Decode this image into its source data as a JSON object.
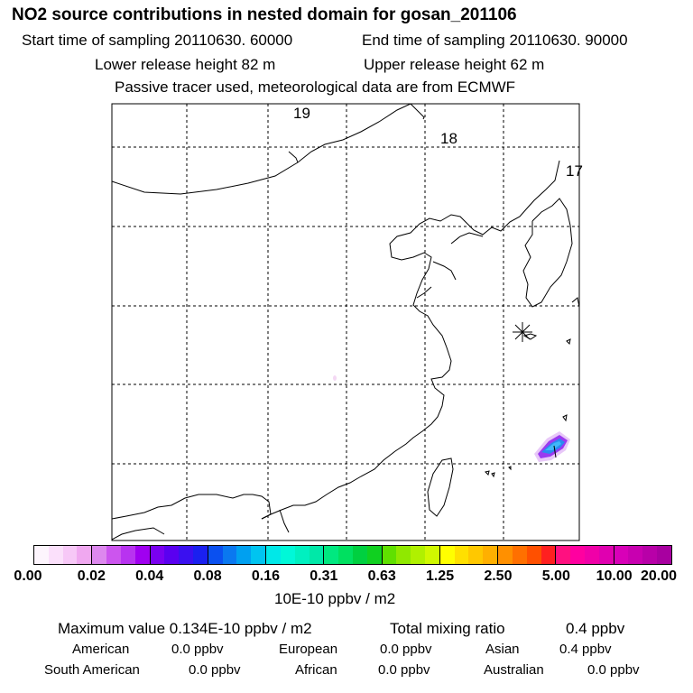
{
  "header": {
    "title": "NO2 source contributions in nested domain for gosan_201106",
    "start_label": "Start time of sampling 20110630. 60000",
    "end_label": "End time of sampling 20110630. 90000",
    "lower_label": "Lower release height   82 m",
    "upper_label": "Upper release height   62 m",
    "info": "Passive tracer used, meteorological data are from ECMWF"
  },
  "map": {
    "trajectory_labels": [
      "19",
      "18",
      "17"
    ],
    "coastline_color": "#000000",
    "grid_color": "#000000"
  },
  "colorbar": {
    "colors": [
      "#fdf5fd",
      "#fbe0fb",
      "#f7c8f7",
      "#f0a8f0",
      "#dd88ee",
      "#cc55ee",
      "#b833f0",
      "#a000f0",
      "#7a00f0",
      "#5a00f0",
      "#3a10f0",
      "#1a20f0",
      "#0a50f0",
      "#0a78f0",
      "#00a0f0",
      "#00c4f0",
      "#00e8e8",
      "#00f8d8",
      "#00f0c0",
      "#00e8a8",
      "#00e880",
      "#00e060",
      "#00d040",
      "#10d020",
      "#60e000",
      "#90e800",
      "#b0f000",
      "#d0f800",
      "#ffff00",
      "#ffe000",
      "#ffc800",
      "#ffb000",
      "#ff9000",
      "#ff7000",
      "#ff5000",
      "#ff2020",
      "#ff1080",
      "#ff00a0",
      "#f000a8",
      "#e000b0",
      "#d800b8",
      "#c800b0",
      "#b800a8",
      "#a800a0",
      "#980098",
      "#800080",
      "#680068",
      "#500050"
    ],
    "ticks": [
      "0.00",
      "0.02",
      "0.04",
      "0.08",
      "0.16",
      "0.31",
      "0.63",
      "1.25",
      "2.50",
      "5.00",
      "10.00",
      "20.00"
    ],
    "unit": "10E-10 ppbv / m2"
  },
  "summary": {
    "max_label": "Maximum value  0.134E-10 ppbv / m2",
    "total_label": "Total mixing ratio",
    "total_value": "0.4 ppbv"
  },
  "regions": [
    {
      "name": "American",
      "value": "0.0 ppbv"
    },
    {
      "name": "European",
      "value": "0.0 ppbv"
    },
    {
      "name": "Asian",
      "value": "0.4 ppbv"
    },
    {
      "name": "South American",
      "value": "0.0 ppbv"
    },
    {
      "name": "African",
      "value": "0.0 ppbv"
    },
    {
      "name": "Australian",
      "value": "0.0 ppbv"
    }
  ]
}
